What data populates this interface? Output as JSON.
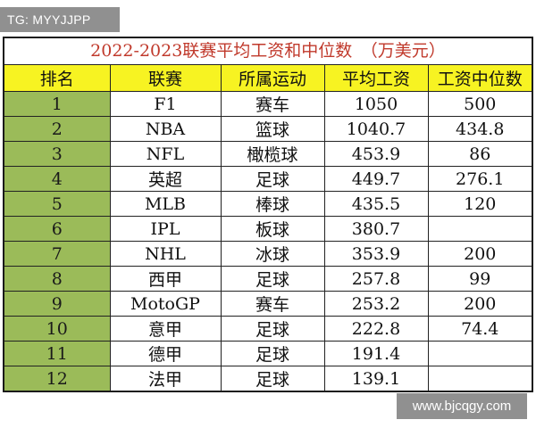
{
  "watermark_top": "TG: MYYJJPP",
  "watermark_bottom": "www.bjcqgy.com",
  "table": {
    "title": "2022-2023联赛平均工资和中位数　（万美元）",
    "headers": [
      "排名",
      "联赛",
      "所属运动",
      "平均工资",
      "工资中位数"
    ],
    "rows": [
      {
        "rank": "1",
        "league": "F1",
        "sport": "赛车",
        "avg": "1050",
        "median": "500"
      },
      {
        "rank": "2",
        "league": "NBA",
        "sport": "篮球",
        "avg": "1040.7",
        "median": "434.8"
      },
      {
        "rank": "3",
        "league": "NFL",
        "sport": "橄榄球",
        "avg": "453.9",
        "median": "86"
      },
      {
        "rank": "4",
        "league": "英超",
        "sport": "足球",
        "avg": "449.7",
        "median": "276.1"
      },
      {
        "rank": "5",
        "league": "MLB",
        "sport": "棒球",
        "avg": "435.5",
        "median": "120"
      },
      {
        "rank": "6",
        "league": "IPL",
        "sport": "板球",
        "avg": "380.7",
        "median": ""
      },
      {
        "rank": "7",
        "league": "NHL",
        "sport": "冰球",
        "avg": "353.9",
        "median": "200"
      },
      {
        "rank": "8",
        "league": "西甲",
        "sport": "足球",
        "avg": "257.8",
        "median": "99"
      },
      {
        "rank": "9",
        "league": "MotoGP",
        "sport": "赛车",
        "avg": "253.2",
        "median": "200"
      },
      {
        "rank": "10",
        "league": "意甲",
        "sport": "足球",
        "avg": "222.8",
        "median": "74.4"
      },
      {
        "rank": "11",
        "league": "德甲",
        "sport": "足球",
        "avg": "191.4",
        "median": ""
      },
      {
        "rank": "12",
        "league": "法甲",
        "sport": "足球",
        "avg": "139.1",
        "median": ""
      }
    ]
  },
  "colors": {
    "title_text": "#c0392b",
    "header_bg": "#f7f322",
    "rank_bg": "#9bbb59"
  }
}
